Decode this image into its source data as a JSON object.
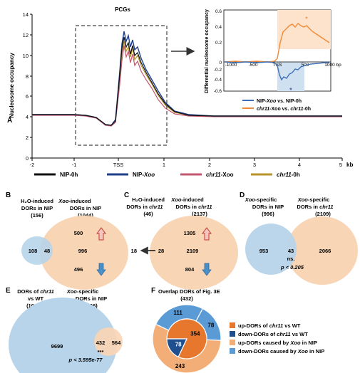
{
  "colors": {
    "nip0h": "#111111",
    "nipXoo": "#1f3f8a",
    "chr11Xoo": "#c2576f",
    "chr11_0h": "#b8952a",
    "inset_blue": "#3b6fb6",
    "inset_orange": "#f08a38",
    "venn_blue": "#b7d4ea",
    "venn_peach": "#f8d5b5",
    "pie_orange_dark": "#e7772c",
    "pie_blue_dark": "#1f4f8f",
    "pie_peach": "#f3ad77",
    "pie_blue_light": "#5b9bd5",
    "arrow_up": "#c0392b",
    "arrow_down": "#4a90c8"
  },
  "panelA": {
    "label": "A",
    "title": "PCGs",
    "ylabel": "Nucleosome occupancy",
    "xunit": "kb",
    "yticks": [
      "14",
      "12",
      "10",
      "8",
      "6",
      "4",
      "2",
      "0"
    ],
    "xticks": [
      "-2",
      "-1",
      "TSS",
      "1",
      "2",
      "3",
      "4",
      "5"
    ],
    "legend": [
      {
        "prefix": "NIP-0h",
        "suffix": "",
        "key": "nip0h"
      },
      {
        "prefix": "NIP-",
        "suffix": "Xoo",
        "key": "nipXoo"
      },
      {
        "prefix": "chr11",
        "suffix": "-Xoo",
        "key": "chr11Xoo"
      },
      {
        "prefix": "chr11",
        "suffix": "-0h",
        "key": "chr11_0h"
      }
    ]
  },
  "inset": {
    "ylabel": "Differential nucleosome occupancy",
    "yticks": [
      "0.6",
      "0.4",
      "0.2",
      "0",
      "-0.2",
      "-0.4",
      "-0.6"
    ],
    "xticks": [
      "-1000",
      "-500",
      "TSS",
      "500",
      "1000 bp"
    ],
    "star": "*",
    "legend1": {
      "a": "NIP-",
      "b": "Xoo",
      "c": " vs. NIP-0h"
    },
    "legend2": {
      "a": "chr11",
      "b": "-Xoo vs. ",
      "c": "chr11",
      "d": "-0h"
    }
  },
  "panelB": {
    "label": "B",
    "left_title": [
      "H₂O-induced",
      "DORs in NIP",
      "(156)"
    ],
    "right_title": [
      "Xoo",
      "-induced",
      "DORs in NIP",
      "(1044)"
    ],
    "left_only": "108",
    "overlap": "48",
    "right_only": "996",
    "up": "500",
    "down": "496"
  },
  "panelC": {
    "label": "C",
    "left_title": [
      "H₂O-induced",
      "DORs in ",
      "chr11",
      "(46)"
    ],
    "right_title": [
      "Xoo",
      "-induced",
      "DORs in ",
      "chr11",
      "(2137)"
    ],
    "left_only": "18",
    "overlap": "28",
    "right_only": "2109",
    "up": "1305",
    "down": "804"
  },
  "panelD": {
    "label": "D",
    "left_title": [
      "Xoo",
      "-specific",
      "DORs in NIP",
      "(996)"
    ],
    "right_title": [
      "Xoo",
      "-specific",
      "DORs in ",
      "chr11",
      "(2109)"
    ],
    "left_only": "953",
    "overlap": "43",
    "right_only": "2066",
    "ns": "ns.",
    "pval": "p < 0.205"
  },
  "panelE": {
    "label": "E",
    "left_title": [
      "DORs of ",
      "chr11",
      "vs WT",
      "(10131)"
    ],
    "right_title": [
      "Xoo",
      "-specific",
      "DORs in NIP",
      "(996)"
    ],
    "left_only": "9699",
    "overlap": "432",
    "right_only": "564",
    "sig": "***",
    "pval": "p < 3.595e-77"
  },
  "panelF": {
    "label": "F",
    "title": "Overlap DORs of Fig. 3E",
    "total": "(432)",
    "outer": [
      {
        "value": 111,
        "label": "111"
      },
      {
        "value": 78,
        "label": "78"
      },
      {
        "value": 243,
        "label": "243"
      }
    ],
    "inner": [
      {
        "value": 354,
        "label": "354"
      },
      {
        "value": 78,
        "label": "78"
      }
    ],
    "legend": [
      {
        "a": "up-DORs of ",
        "b": "chr11",
        "c": " vs WT",
        "key": "pie_orange_dark"
      },
      {
        "a": "down-DORs of ",
        "b": "chr11",
        "c": " vs WT",
        "key": "pie_blue_dark"
      },
      {
        "a": "up-DORs caused  by ",
        "b": "Xoo",
        "c": " in NIP",
        "key": "pie_peach"
      },
      {
        "a": "down-DORs caused  by ",
        "b": "Xoo",
        "c": " in NIP",
        "key": "pie_blue_light"
      }
    ]
  }
}
